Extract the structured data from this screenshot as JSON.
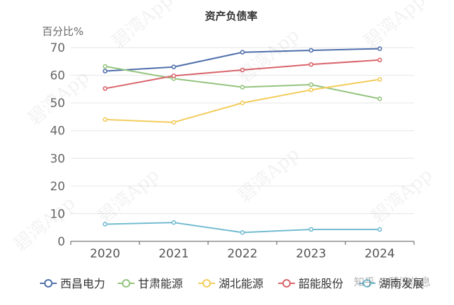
{
  "chart_data": {
    "type": "line",
    "title": "资产负债率",
    "ylabel": "百分比%",
    "xlabel": "",
    "categories": [
      "2020",
      "2021",
      "2022",
      "2023",
      "2024"
    ],
    "ylim": [
      0,
      70
    ],
    "yticks": [
      0,
      10,
      20,
      30,
      40,
      50,
      60,
      70
    ],
    "grid": true,
    "legend_position": "bottom",
    "series": [
      {
        "name": "西昌电力",
        "color": "#4e6fab",
        "values": [
          61.5,
          63.0,
          68.3,
          69.0,
          69.6
        ]
      },
      {
        "name": "甘肃能源",
        "color": "#93c47d",
        "values": [
          63.2,
          58.8,
          55.7,
          56.6,
          51.5
        ]
      },
      {
        "name": "湖北能源",
        "color": "#f2cc5c",
        "values": [
          44.0,
          43.0,
          50.0,
          54.7,
          58.5
        ]
      },
      {
        "name": "韶能股份",
        "color": "#d9646b",
        "values": [
          55.2,
          59.8,
          61.9,
          63.9,
          65.5
        ]
      },
      {
        "name": "湖南发展",
        "color": "#73bcd1",
        "values": [
          6.2,
          6.8,
          3.2,
          4.3,
          4.3
        ]
      }
    ]
  },
  "watermark": {
    "text": "碧湾App",
    "source": "知乎 @碧湾信息"
  }
}
